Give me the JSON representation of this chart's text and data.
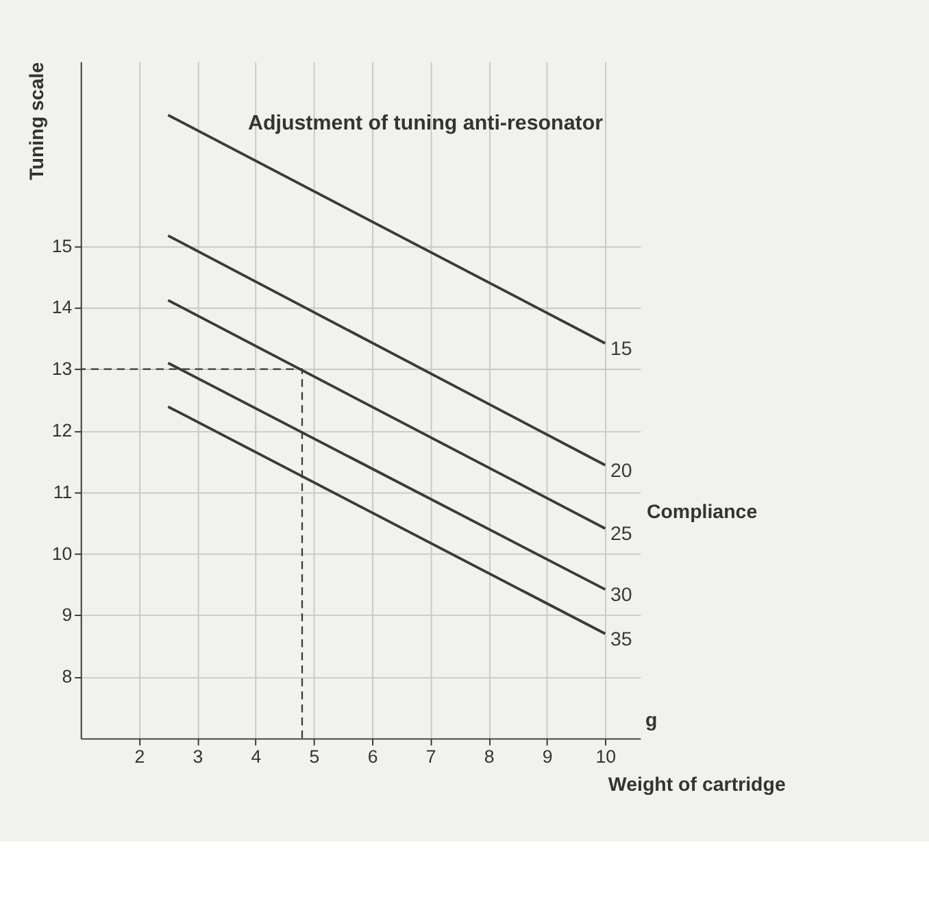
{
  "chart_data": {
    "type": "line",
    "title": "Adjustment of tuning anti-resonator",
    "xlabel": "Weight of cartridge",
    "ylabel": "Tuning scale",
    "annotations": [
      "Compliance",
      "g"
    ],
    "xlim": [
      1,
      10.6
    ],
    "ylim": [
      7,
      18
    ],
    "xticks": [
      2,
      3,
      4,
      5,
      6,
      7,
      8,
      9,
      10
    ],
    "yticks": [
      8,
      9,
      10,
      11,
      12,
      13,
      14,
      15
    ],
    "grid": true,
    "marker": "none",
    "series": [
      {
        "name": "15",
        "color": "#3a3a3a",
        "x": [
          2.5,
          10
        ],
        "values": [
          17.13,
          13.42
        ]
      },
      {
        "name": "20",
        "color": "#3a3a3a",
        "x": [
          2.5,
          10
        ],
        "values": [
          15.17,
          11.44
        ]
      },
      {
        "name": "25",
        "color": "#3a3a3a",
        "x": [
          2.5,
          10
        ],
        "values": [
          14.12,
          10.41
        ]
      },
      {
        "name": "30",
        "color": "#3a3a3a",
        "x": [
          2.5,
          10
        ],
        "values": [
          13.1,
          9.42
        ]
      },
      {
        "name": "35",
        "color": "#3a3a3a",
        "x": [
          2.5,
          10
        ],
        "values": [
          12.39,
          8.7
        ]
      },
      {
        "color": "#3a3a3a",
        "line_style": "dashed",
        "x": [
          4.8,
          4.8,
          1
        ],
        "values": [
          7,
          13,
          13
        ]
      }
    ]
  }
}
